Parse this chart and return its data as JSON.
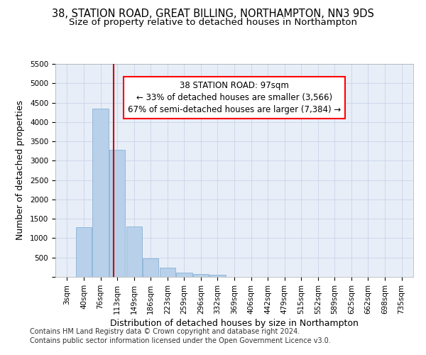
{
  "title_line1": "38, STATION ROAD, GREAT BILLING, NORTHAMPTON, NN3 9DS",
  "title_line2": "Size of property relative to detached houses in Northampton",
  "xlabel": "Distribution of detached houses by size in Northampton",
  "ylabel": "Number of detached properties",
  "categories": [
    "3sqm",
    "40sqm",
    "76sqm",
    "113sqm",
    "149sqm",
    "186sqm",
    "223sqm",
    "259sqm",
    "296sqm",
    "332sqm",
    "369sqm",
    "406sqm",
    "442sqm",
    "479sqm",
    "515sqm",
    "552sqm",
    "589sqm",
    "625sqm",
    "662sqm",
    "698sqm",
    "735sqm"
  ],
  "values": [
    0,
    1280,
    4340,
    3290,
    1300,
    480,
    230,
    110,
    70,
    50,
    0,
    0,
    0,
    0,
    0,
    0,
    0,
    0,
    0,
    0,
    0
  ],
  "bar_color": "#b8d0ea",
  "bar_edge_color": "#7aaad0",
  "vline_x_index": 2.78,
  "vline_color": "#cc0000",
  "annotation_line1": "38 STATION ROAD: 97sqm",
  "annotation_line2": "← 33% of detached houses are smaller (3,566)",
  "annotation_line3": "67% of semi-detached houses are larger (7,384) →",
  "ylim": [
    0,
    5500
  ],
  "yticks": [
    0,
    500,
    1000,
    1500,
    2000,
    2500,
    3000,
    3500,
    4000,
    4500,
    5000,
    5500
  ],
  "footer_line1": "Contains HM Land Registry data © Crown copyright and database right 2024.",
  "footer_line2": "Contains public sector information licensed under the Open Government Licence v3.0.",
  "bg_color": "#ffffff",
  "plot_bg_color": "#e8eef8",
  "grid_color": "#c8d4e8",
  "title_fontsize": 10.5,
  "subtitle_fontsize": 9.5,
  "axis_label_fontsize": 9,
  "tick_fontsize": 7.5,
  "annotation_fontsize": 8.5,
  "footer_fontsize": 7
}
